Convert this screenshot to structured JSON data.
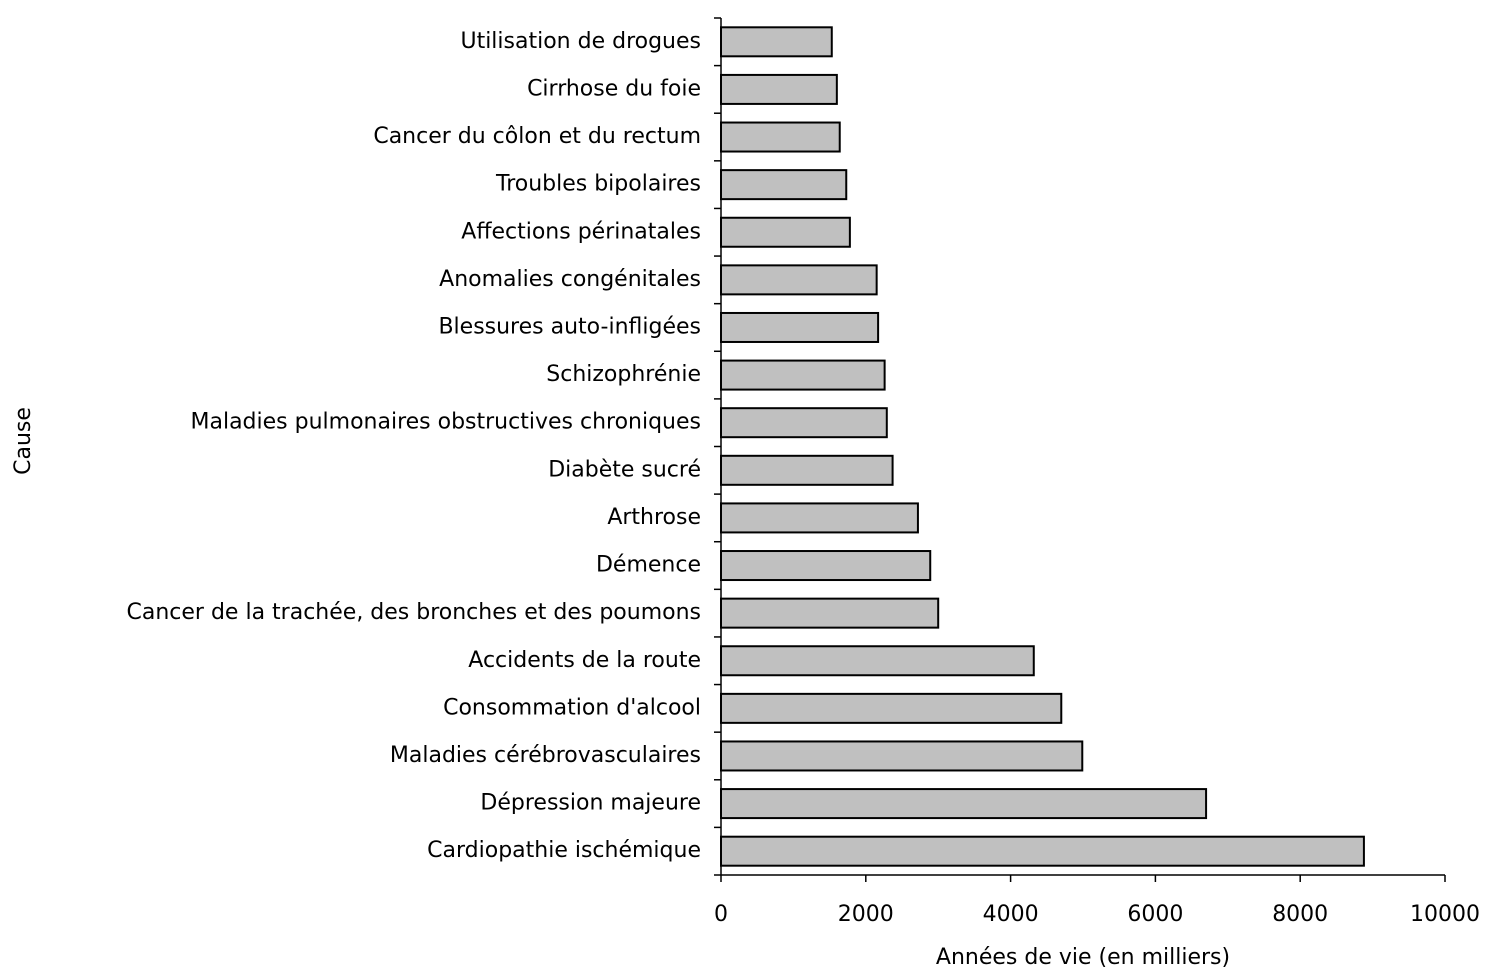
{
  "chart_data": {
    "type": "barh",
    "xlabel": "Années de vie (en milliers)",
    "ylabel": "Cause",
    "categories": [
      "Utilisation de drogues",
      "Cirrhose du foie",
      "Cancer du côlon et du rectum",
      "Troubles bipolaires",
      "Affections périnatales",
      "Anomalies congénitales",
      "Blessures auto-infligées",
      "Schizophrénie",
      "Maladies pulmonaires obstructives chroniques",
      "Diabète sucré",
      "Arthrose",
      "Démence",
      "Cancer de la trachée, des bronches et des poumons",
      "Accidents de la route",
      "Consommation d'alcool",
      "Maladies cérébrovasculaires",
      "Dépression majeure",
      "Cardiopathie ischémique"
    ],
    "values": [
      1530,
      1600,
      1640,
      1730,
      1780,
      2150,
      2170,
      2260,
      2290,
      2370,
      2720,
      2890,
      3000,
      4320,
      4700,
      4990,
      6700,
      8880
    ],
    "color": "#c0c0c0",
    "xlim": [
      0,
      10000
    ],
    "xticks": [
      0,
      2000,
      4000,
      6000,
      8000,
      10000
    ],
    "grid": false
  }
}
